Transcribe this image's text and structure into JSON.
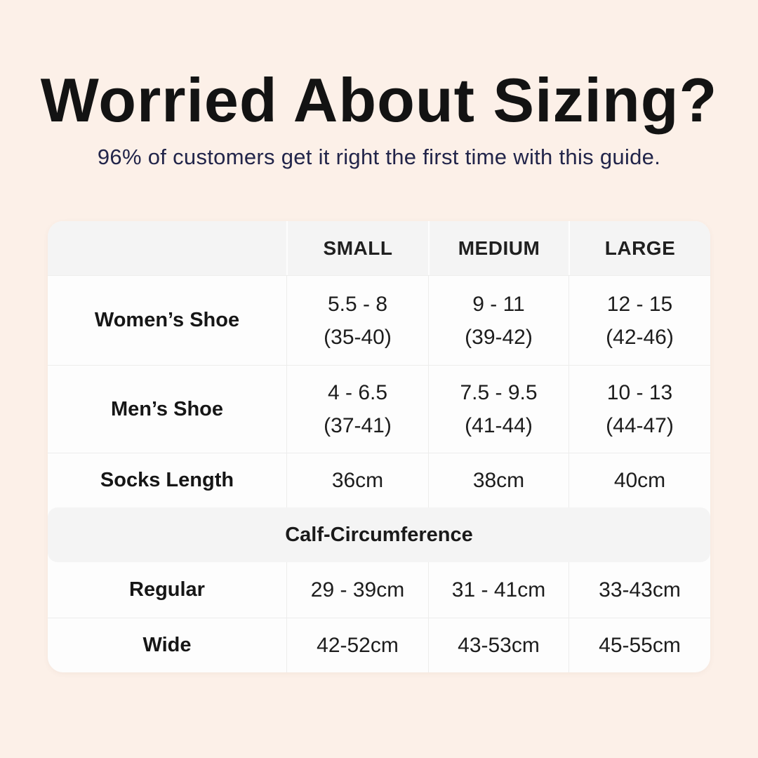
{
  "page": {
    "title": "Worried About Sizing?",
    "subtitle": "96% of customers get it right the first time with this guide.",
    "colors": {
      "background": "#fcf0e8",
      "title_text": "#131313",
      "subtitle_text": "#22254a",
      "card_background": "#fdfdfd",
      "header_background": "#f4f4f4",
      "divider": "#ededec",
      "table_text": "#1d1d1d"
    }
  },
  "chart_data": {
    "type": "table",
    "title": "Worried About Sizing?",
    "subtitle": "96% of customers get it right the first time with this guide.",
    "columns": [
      "SMALL",
      "MEDIUM",
      "LARGE"
    ],
    "sections": [
      {
        "rows": [
          {
            "label": "Women’s Shoe",
            "values": [
              [
                "5.5 - 8",
                "(35-40)"
              ],
              [
                "9 - 11",
                "(39-42)"
              ],
              [
                "12 - 15",
                "(42-46)"
              ]
            ]
          },
          {
            "label": "Men’s Shoe",
            "values": [
              [
                "4 - 6.5",
                "(37-41)"
              ],
              [
                "7.5 - 9.5",
                "(41-44)"
              ],
              [
                "10 - 13",
                "(44-47)"
              ]
            ]
          },
          {
            "label": "Socks Length",
            "values": [
              [
                "36cm"
              ],
              [
                "38cm"
              ],
              [
                "40cm"
              ]
            ]
          }
        ]
      },
      {
        "header": "Calf-Circumference",
        "rows": [
          {
            "label": "Regular",
            "values": [
              [
                "29 - 39cm"
              ],
              [
                "31 - 41cm"
              ],
              [
                "33-43cm"
              ]
            ]
          },
          {
            "label": "Wide",
            "values": [
              [
                "42-52cm"
              ],
              [
                "43-53cm"
              ],
              [
                "45-55cm"
              ]
            ]
          }
        ]
      }
    ]
  }
}
